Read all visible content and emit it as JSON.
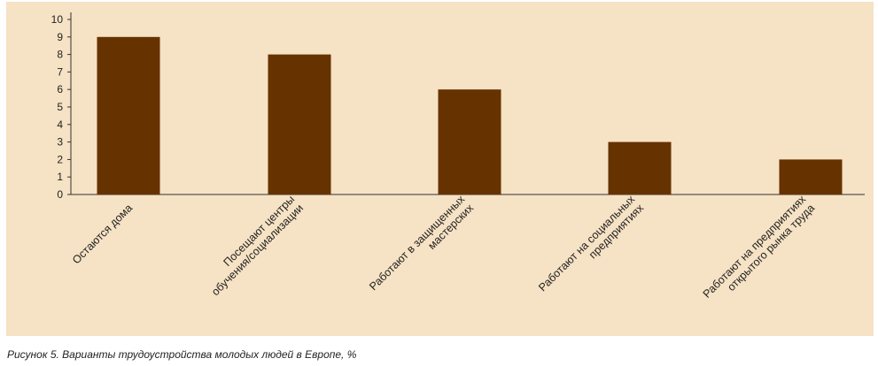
{
  "chart_data": {
    "type": "bar",
    "categories": [
      "Остаются дома",
      "Посещают центры обучения/социализации",
      "Работают в защищенных мастерских",
      "Работают на социальных предприятиях",
      "Работают на предприятиях открытого рынка труда"
    ],
    "category_lines": [
      [
        "Остаются дома"
      ],
      [
        "Посещают центры",
        "обучения/социализации"
      ],
      [
        "Работают в защищенных",
        "мастерских"
      ],
      [
        "Работают на социальных",
        "предприятиях"
      ],
      [
        "Работают на предприятиях",
        "открытого рынка труда"
      ]
    ],
    "values": [
      9,
      8,
      6,
      3,
      2
    ],
    "ylim": [
      0,
      10
    ],
    "yticks": [
      0,
      1,
      2,
      3,
      4,
      5,
      6,
      7,
      8,
      9,
      10
    ],
    "bar_color": "#663300",
    "background_color": "#f6e2c4",
    "grid": false
  },
  "caption": "Рисунок 5. Варианты трудоустройства молодых людей в Европе, %"
}
